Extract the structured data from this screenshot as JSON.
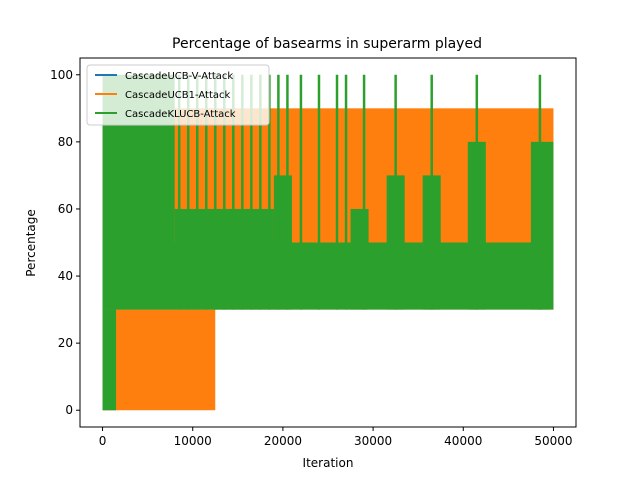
{
  "chart_data": {
    "type": "line",
    "title": "Percentage of basearms in superarm played",
    "xlabel": "Iteration",
    "ylabel": "Percentage",
    "xlim": [
      -2500,
      52500
    ],
    "ylim": [
      -5,
      105
    ],
    "xticks": [
      0,
      10000,
      20000,
      30000,
      40000,
      50000
    ],
    "yticks": [
      0,
      20,
      40,
      60,
      80,
      100
    ],
    "xtick_labels": [
      "0",
      "10000",
      "20000",
      "30000",
      "40000",
      "50000"
    ],
    "ytick_labels": [
      "0",
      "20",
      "40",
      "60",
      "80",
      "100"
    ],
    "grid": false,
    "legend_position": "top-left",
    "series": [
      {
        "name": "CascadeUCB-V-Attack",
        "color": "#1f77b4",
        "bands": [
          {
            "x0": 0,
            "x1": 1500,
            "low": 0,
            "high": 30
          }
        ]
      },
      {
        "name": "CascadeUCB1-Attack",
        "color": "#ff7f0e",
        "bands": [
          {
            "x0": 0,
            "x1": 12500,
            "low": 0,
            "high": 30
          },
          {
            "x0": 0,
            "x1": 50000,
            "low": 30,
            "high": 90
          }
        ]
      },
      {
        "name": "CascadeKLUCB-Attack",
        "color": "#2ca02c",
        "bands": [
          {
            "x0": 0,
            "x1": 1500,
            "low": 0,
            "high": 30
          },
          {
            "x0": 0,
            "x1": 50000,
            "low": 30,
            "high": 50
          },
          {
            "x0": 0,
            "x1": 8000,
            "low": 30,
            "high": 100
          }
        ],
        "spikes": [
          8500,
          9500,
          10500,
          11500,
          12500,
          13500,
          14500,
          15500,
          16500,
          17500,
          18500,
          19500,
          20500,
          22000,
          24000,
          26000,
          27000,
          29000,
          32500,
          36500,
          41500,
          48500
        ],
        "spike_high": 100,
        "segments": [
          {
            "x0": 8000,
            "x1": 19000,
            "low": 30,
            "high": 60
          },
          {
            "x0": 19000,
            "x1": 21000,
            "low": 30,
            "high": 70
          },
          {
            "x0": 27500,
            "x1": 29500,
            "low": 30,
            "high": 60
          },
          {
            "x0": 31500,
            "x1": 33500,
            "low": 30,
            "high": 70
          },
          {
            "x0": 35500,
            "x1": 37500,
            "low": 30,
            "high": 70
          },
          {
            "x0": 40500,
            "x1": 42500,
            "low": 30,
            "high": 80
          },
          {
            "x0": 47500,
            "x1": 49500,
            "low": 30,
            "high": 80
          },
          {
            "x0": 49500,
            "x1": 50000,
            "low": 40,
            "high": 80
          }
        ]
      }
    ]
  }
}
